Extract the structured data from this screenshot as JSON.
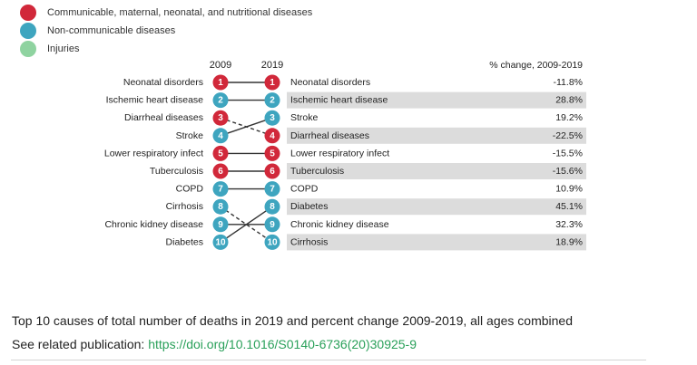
{
  "legend": [
    {
      "label": "Communicable, maternal, neonatal, and nutritional diseases",
      "color": "#d1283a"
    },
    {
      "label": "Non-communicable diseases",
      "color": "#3ea5bf"
    },
    {
      "label": "Injuries",
      "color": "#8fd3a0"
    }
  ],
  "chart_data": {
    "type": "table",
    "year_start": "2009",
    "year_end": "2019",
    "change_header": "% change, 2009-2019",
    "rows_2009": [
      {
        "rank": 1,
        "cause": "Neonatal disorders",
        "group": "communicable"
      },
      {
        "rank": 2,
        "cause": "Ischemic heart disease",
        "group": "noncommunicable"
      },
      {
        "rank": 3,
        "cause": "Diarrheal diseases",
        "group": "communicable"
      },
      {
        "rank": 4,
        "cause": "Stroke",
        "group": "noncommunicable"
      },
      {
        "rank": 5,
        "cause": "Lower respiratory infect",
        "group": "communicable"
      },
      {
        "rank": 6,
        "cause": "Tuberculosis",
        "group": "communicable"
      },
      {
        "rank": 7,
        "cause": "COPD",
        "group": "noncommunicable"
      },
      {
        "rank": 8,
        "cause": "Cirrhosis",
        "group": "noncommunicable"
      },
      {
        "rank": 9,
        "cause": "Chronic kidney disease",
        "group": "noncommunicable"
      },
      {
        "rank": 10,
        "cause": "Diabetes",
        "group": "noncommunicable"
      }
    ],
    "rows_2019": [
      {
        "rank": 1,
        "cause": "Neonatal disorders",
        "group": "communicable",
        "change": "-11.8%",
        "from_rank": 1
      },
      {
        "rank": 2,
        "cause": "Ischemic heart disease",
        "group": "noncommunicable",
        "change": "28.8%",
        "from_rank": 2
      },
      {
        "rank": 3,
        "cause": "Stroke",
        "group": "noncommunicable",
        "change": "19.2%",
        "from_rank": 4
      },
      {
        "rank": 4,
        "cause": "Diarrheal diseases",
        "group": "communicable",
        "change": "-22.5%",
        "from_rank": 3
      },
      {
        "rank": 5,
        "cause": "Lower respiratory infect",
        "group": "communicable",
        "change": "-15.5%",
        "from_rank": 5
      },
      {
        "rank": 6,
        "cause": "Tuberculosis",
        "group": "communicable",
        "change": "-15.6%",
        "from_rank": 6
      },
      {
        "rank": 7,
        "cause": "COPD",
        "group": "noncommunicable",
        "change": "10.9%",
        "from_rank": 7
      },
      {
        "rank": 8,
        "cause": "Diabetes",
        "group": "noncommunicable",
        "change": "45.1%",
        "from_rank": 10
      },
      {
        "rank": 9,
        "cause": "Chronic kidney disease",
        "group": "noncommunicable",
        "change": "32.3%",
        "from_rank": 9
      },
      {
        "rank": 10,
        "cause": "Cirrhosis",
        "group": "noncommunicable",
        "change": "18.9%",
        "from_rank": 8
      }
    ],
    "group_colors": {
      "communicable": "#d1283a",
      "noncommunicable": "#3ea5bf",
      "injuries": "#8fd3a0"
    }
  },
  "caption": "Top 10 causes of total number of deaths in 2019 and percent change 2009-2019, all ages combined",
  "related": {
    "prefix": "See related publication: ",
    "link": "https://doi.org/10.1016/S0140-6736(20)30925-9"
  }
}
